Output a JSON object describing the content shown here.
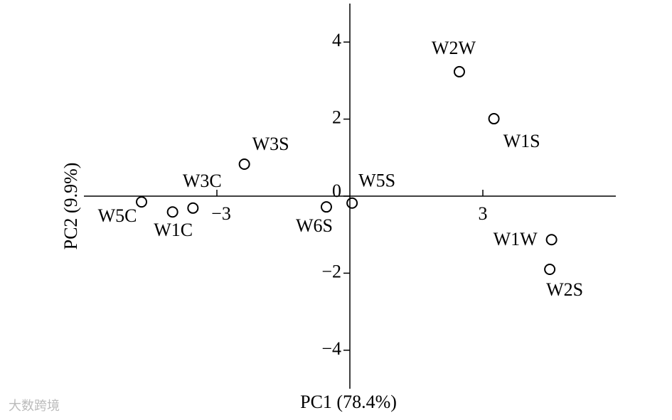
{
  "chart_data": {
    "type": "scatter",
    "x_label": "PC1 (78.4%)",
    "y_label": "PC2 (9.9%)",
    "xlim": [
      -6,
      6
    ],
    "ylim": [
      -5,
      5
    ],
    "xticks": [
      {
        "value": -3,
        "label": "−3"
      },
      3
    ],
    "yticks": [
      {
        "value": -4,
        "label": "−4"
      },
      {
        "value": -2,
        "label": "−2"
      },
      0,
      2,
      4
    ],
    "color": "#000000",
    "series": [
      {
        "labels": [
          "W2W",
          "W1S",
          "W3S",
          "W3C",
          "W1C",
          "W5C",
          "W6S",
          "W5S",
          "W1W",
          "W2S"
        ],
        "x": [
          2.47,
          3.25,
          -2.38,
          -3.54,
          -4.0,
          -4.7,
          -0.53,
          0.05,
          4.55,
          4.51
        ],
        "values": [
          3.23,
          2.01,
          0.83,
          -0.31,
          -0.41,
          -0.15,
          -0.28,
          -0.18,
          -1.13,
          -1.9
        ]
      }
    ],
    "watermark": "大数跨境"
  }
}
